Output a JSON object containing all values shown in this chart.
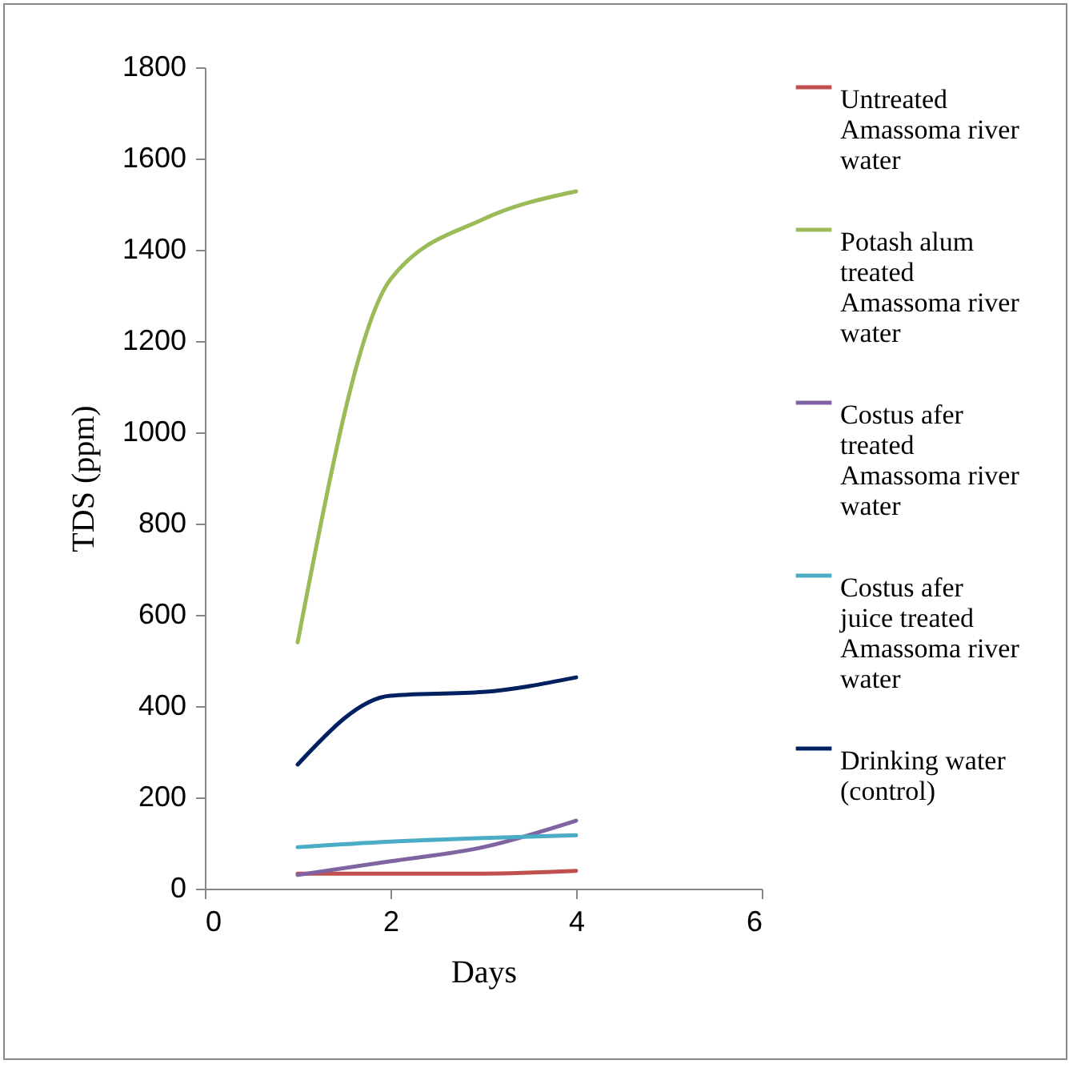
{
  "chart_data": {
    "type": "line",
    "xlabel": "Days",
    "ylabel": "TDS (ppm)",
    "x": [
      1,
      2,
      3,
      4
    ],
    "series": [
      {
        "name": "Untreated Amassoma river water",
        "color": "#c0504d",
        "values": [
          33,
          33,
          33,
          39
        ]
      },
      {
        "name": "Potash alum treated Amassoma river water",
        "color": "#9bbb59",
        "values": [
          540,
          1335,
          1467,
          1528
        ]
      },
      {
        "name": "Costus afer treated Amassoma river water",
        "color": "#8064a2",
        "values": [
          30,
          60,
          91,
          149
        ]
      },
      {
        "name": "Costus afer juice treated Amassoma river water",
        "color": "#4bacc6",
        "values": [
          91,
          103,
          111,
          117
        ]
      },
      {
        "name": "Drinking water (control)",
        "color": "#002060",
        "values": [
          272,
          423,
          431,
          463
        ]
      }
    ],
    "xlim": [
      0,
      6
    ],
    "xticks": [
      0,
      2,
      4,
      6
    ],
    "ylim": [
      0,
      1800
    ],
    "yticks": [
      0,
      200,
      400,
      600,
      800,
      1000,
      1200,
      1400,
      1600,
      1800
    ],
    "grid": false,
    "legend": "right",
    "marker": "none",
    "line_style": "solid"
  }
}
